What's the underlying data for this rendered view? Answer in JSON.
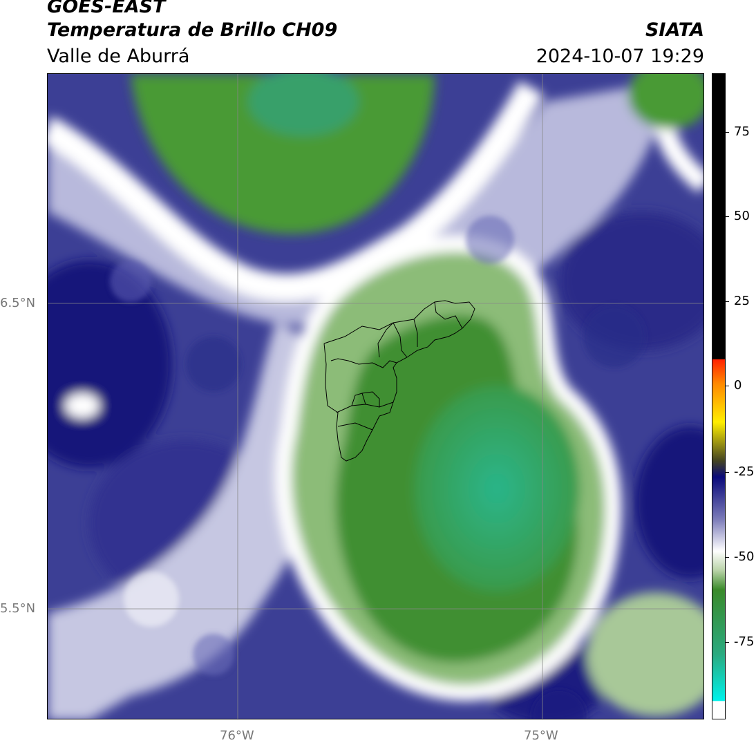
{
  "header": {
    "satellite": "GOES-EAST",
    "product": "Temperatura de Brillo CH09",
    "region": "Valle de Aburrá",
    "organization": "SIATA",
    "timestamp": "2024-10-07 19:29"
  },
  "axes": {
    "latitude_labels": [
      "6.5°N",
      "5.5°N"
    ],
    "longitude_labels": [
      "76°W",
      "75°W"
    ]
  },
  "colorbar": {
    "tick_labels": [
      "75",
      "50",
      "25",
      "0",
      "-25",
      "-50",
      "-75"
    ],
    "colors": {
      "warm_black": "#000000",
      "red": "#ff2200",
      "orange": "#ff8800",
      "yellow": "#ffee00",
      "dark_olive": "#444422",
      "navy": "#0a0a7a",
      "blue_gray": "#7a7ab8",
      "white": "#ffffff",
      "light_green": "#b9d3a8",
      "green": "#3a8a2a",
      "teal": "#2aaa80",
      "cyan": "#00f0e8"
    }
  }
}
